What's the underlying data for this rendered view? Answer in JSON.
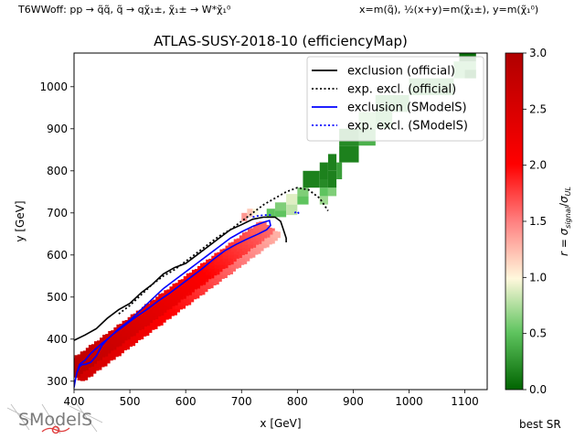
{
  "header": {
    "process": "T6WWoff: pp → q̃q̃, q̃ → qχ̃₁±, χ̃₁± → W*χ̃₁⁰",
    "axes_def": "x=m(q̃), ½(x+y)=m(χ̃₁±), y=m(χ̃₁⁰)"
  },
  "footer": {
    "best_sr": "best SR",
    "logo_text": "SModelS"
  },
  "colors": {
    "official": "#000000",
    "smodels": "#0000ff",
    "cmap_low": "#006400",
    "cmap_mid": "#fff8dc",
    "cmap_high": "#b00000"
  },
  "chart_data": {
    "type": "heatmap",
    "title": "ATLAS-SUSY-2018-10 (efficiencyMap)",
    "xlabel": "x [GeV]",
    "ylabel": "y [GeV]",
    "xlim": [
      400,
      1140
    ],
    "ylim": [
      280,
      1080
    ],
    "xticks": [
      400,
      500,
      600,
      700,
      800,
      900,
      1000,
      1100
    ],
    "yticks": [
      300,
      400,
      500,
      600,
      700,
      800,
      900,
      1000
    ],
    "grid": false,
    "legend_position": "upper-right",
    "colorbar": {
      "label": "r = σ_signal/σ_UL",
      "range": [
        0.0,
        3.0
      ],
      "ticks": [
        "0.0",
        "0.5",
        "1.0",
        "1.5",
        "2.0",
        "2.5",
        "3.0"
      ]
    },
    "legend": [
      {
        "label": "exclusion (official)",
        "color": "#000000",
        "style": "solid"
      },
      {
        "label": "exp. excl. (official)",
        "color": "#000000",
        "style": "dotted"
      },
      {
        "label": "exclusion (SModelS)",
        "color": "#0000ff",
        "style": "solid"
      },
      {
        "label": "exp. excl. (SModelS)",
        "color": "#0000ff",
        "style": "dotted"
      }
    ],
    "band": {
      "start": {
        "x": 400,
        "y": 320
      },
      "end": {
        "x": 750,
        "y": 660
      },
      "r_start": 2.9,
      "r_end": 1.6
    },
    "cells": [
      {
        "x": 700,
        "y": 680,
        "w": 10,
        "h": 20,
        "r": 1.4
      },
      {
        "x": 710,
        "y": 690,
        "w": 10,
        "h": 20,
        "r": 1.2
      },
      {
        "x": 720,
        "y": 695,
        "w": 10,
        "h": 15,
        "r": 1.0
      },
      {
        "x": 745,
        "y": 690,
        "w": 15,
        "h": 20,
        "r": 0.5
      },
      {
        "x": 760,
        "y": 690,
        "w": 20,
        "h": 20,
        "r": 0.5
      },
      {
        "x": 760,
        "y": 705,
        "w": 20,
        "h": 20,
        "r": 0.6
      },
      {
        "x": 780,
        "y": 695,
        "w": 20,
        "h": 25,
        "r": 0.8
      },
      {
        "x": 780,
        "y": 720,
        "w": 20,
        "h": 25,
        "r": 0.9
      },
      {
        "x": 800,
        "y": 720,
        "w": 20,
        "h": 20,
        "r": 0.5
      },
      {
        "x": 800,
        "y": 740,
        "w": 20,
        "h": 20,
        "r": 0.6
      },
      {
        "x": 810,
        "y": 760,
        "w": 30,
        "h": 40,
        "r": 0.15
      },
      {
        "x": 840,
        "y": 720,
        "w": 15,
        "h": 20,
        "r": 0.7
      },
      {
        "x": 840,
        "y": 740,
        "w": 15,
        "h": 20,
        "r": 0.5
      },
      {
        "x": 840,
        "y": 760,
        "w": 15,
        "h": 20,
        "r": 0.2
      },
      {
        "x": 840,
        "y": 780,
        "w": 15,
        "h": 40,
        "r": 0.15
      },
      {
        "x": 855,
        "y": 740,
        "w": 15,
        "h": 20,
        "r": 0.6
      },
      {
        "x": 855,
        "y": 760,
        "w": 15,
        "h": 40,
        "r": 0.15
      },
      {
        "x": 855,
        "y": 800,
        "w": 15,
        "h": 40,
        "r": 0.15
      },
      {
        "x": 870,
        "y": 780,
        "w": 10,
        "h": 40,
        "r": 0.3
      },
      {
        "x": 875,
        "y": 820,
        "w": 35,
        "h": 40,
        "r": 0.15
      },
      {
        "x": 875,
        "y": 860,
        "w": 35,
        "h": 40,
        "r": 0.2
      },
      {
        "x": 910,
        "y": 860,
        "w": 30,
        "h": 40,
        "r": 0.4
      },
      {
        "x": 910,
        "y": 900,
        "w": 30,
        "h": 40,
        "r": 0.6
      },
      {
        "x": 940,
        "y": 900,
        "w": 30,
        "h": 40,
        "r": 0.45
      },
      {
        "x": 940,
        "y": 940,
        "w": 30,
        "h": 40,
        "r": 0.4
      },
      {
        "x": 970,
        "y": 940,
        "w": 30,
        "h": 40,
        "r": 0.35
      },
      {
        "x": 1000,
        "y": 980,
        "w": 80,
        "h": 40,
        "r": 0.4
      },
      {
        "x": 1080,
        "y": 1020,
        "w": 40,
        "h": 40,
        "r": 0.5
      },
      {
        "x": 1090,
        "y": 1060,
        "w": 30,
        "h": 20,
        "r": 0.05
      },
      {
        "x": 1100,
        "y": 1020,
        "w": 20,
        "h": 20,
        "r": 0.1
      }
    ],
    "series": [
      {
        "name": "exclusion (official)",
        "x": [
          400,
          420,
          440,
          460,
          480,
          500,
          520,
          540,
          560,
          580,
          600,
          620,
          640,
          660,
          680,
          700,
          720,
          740,
          760,
          770,
          775,
          780,
          780
        ],
        "y": [
          397,
          410,
          425,
          450,
          470,
          485,
          510,
          530,
          555,
          570,
          580,
          600,
          620,
          640,
          660,
          672,
          685,
          690,
          690,
          680,
          660,
          640,
          630
        ]
      },
      {
        "name": "exp. excl. (official)",
        "x": [
          480,
          500,
          520,
          540,
          560,
          580,
          600,
          620,
          640,
          660,
          680,
          700,
          720,
          740,
          760,
          780,
          800,
          820,
          830,
          840,
          845,
          850,
          855
        ],
        "y": [
          460,
          480,
          505,
          530,
          550,
          565,
          585,
          605,
          625,
          645,
          660,
          680,
          700,
          720,
          735,
          750,
          760,
          755,
          745,
          735,
          725,
          715,
          705
        ]
      },
      {
        "name": "exclusion (SModelS)",
        "x": [
          400,
          402,
          405,
          410,
          415,
          420,
          430,
          440,
          450,
          460,
          470,
          480,
          500,
          520,
          540,
          560,
          580,
          600,
          620,
          640,
          660,
          680,
          700,
          720,
          740,
          750,
          752,
          745,
          730,
          710,
          690,
          670,
          650,
          630,
          610,
          590,
          570,
          550,
          530,
          510,
          490,
          470,
          460,
          450,
          440,
          430,
          420,
          410,
          405,
          402,
          400
        ],
        "y": [
          285,
          300,
          320,
          335,
          340,
          340,
          345,
          360,
          385,
          400,
          412,
          425,
          445,
          470,
          495,
          520,
          540,
          560,
          580,
          600,
          620,
          640,
          655,
          668,
          678,
          682,
          670,
          660,
          650,
          638,
          625,
          610,
          590,
          568,
          548,
          528,
          508,
          490,
          470,
          452,
          432,
          412,
          400,
          390,
          378,
          366,
          350,
          340,
          320,
          300,
          285
        ]
      },
      {
        "name": "exp. excl. (SModelS)",
        "x": [
          720,
          725,
          730,
          735,
          740,
          745,
          750,
          755
        ],
        "y": [
          690,
          692,
          693,
          694,
          695,
          695,
          695,
          695
        ]
      },
      {
        "name": "exp. excl. (SModelS)",
        "x": [
          795,
          800,
          802,
          805
        ],
        "y": [
          700,
          704,
          700,
          703
        ]
      }
    ]
  }
}
